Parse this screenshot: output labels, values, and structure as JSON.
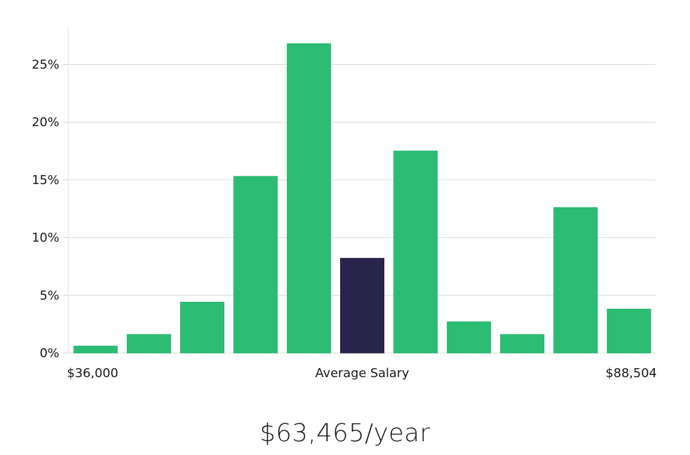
{
  "chart_data": {
    "type": "bar",
    "x_axis": {
      "left_label": "$36,000",
      "center_label": "Average Salary",
      "right_label": "$88,504"
    },
    "y_tick_labels": [
      "0%",
      "5%",
      "10%",
      "15%",
      "20%",
      "25%"
    ],
    "y_ticks": [
      0,
      5,
      10,
      15,
      20,
      25
    ],
    "ylim": [
      0,
      28
    ],
    "values": [
      0.6,
      1.6,
      4.4,
      15.3,
      26.8,
      8.2,
      17.5,
      2.7,
      1.6,
      12.6,
      3.8
    ],
    "highlight_index": 5,
    "grid": true,
    "colors": {
      "bar": "#2bbd74",
      "bar_edge": "#25b06a",
      "highlight": "#29244a",
      "grid": "#d9d9d9",
      "axis": "#cccccc"
    }
  },
  "summary": {
    "average_salary": "$63,465/year"
  }
}
